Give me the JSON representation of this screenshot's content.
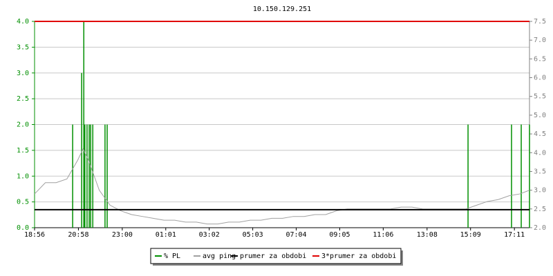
{
  "chart_data": {
    "type": "line",
    "title": "10.150.129.251",
    "xlim": [
      0,
      1377
    ],
    "xticks": [
      {
        "value": 0,
        "label": "18:56"
      },
      {
        "value": 122,
        "label": "20:58"
      },
      {
        "value": 244,
        "label": "23:00"
      },
      {
        "value": 365,
        "label": "01:01"
      },
      {
        "value": 486,
        "label": "03:02"
      },
      {
        "value": 607,
        "label": "05:03"
      },
      {
        "value": 728,
        "label": "07:04"
      },
      {
        "value": 849,
        "label": "09:05"
      },
      {
        "value": 970,
        "label": "11:06"
      },
      {
        "value": 1092,
        "label": "13:08"
      },
      {
        "value": 1213,
        "label": "15:09"
      },
      {
        "value": 1335,
        "label": "17:11"
      }
    ],
    "ylim": [
      0,
      4
    ],
    "yticks": [
      {
        "value": 0,
        "label": "0.0"
      },
      0.5,
      {
        "value": 1,
        "label": "1.0"
      },
      1.5,
      {
        "value": 2,
        "label": "2.0"
      },
      2.5,
      {
        "value": 3,
        "label": "3.0"
      },
      3.5,
      {
        "value": 4,
        "label": "4.0"
      }
    ],
    "y2lim": [
      2,
      7.5
    ],
    "y2ticks": [
      {
        "value": 2,
        "label": "2.0"
      },
      2.5,
      {
        "value": 3,
        "label": "3.0"
      },
      3.5,
      {
        "value": 4,
        "label": "4.0"
      },
      4.5,
      {
        "value": 5,
        "label": "5.0"
      },
      5.5,
      {
        "value": 6,
        "label": "6.0"
      },
      6.5,
      {
        "value": 7,
        "label": "7.0"
      },
      7.5
    ],
    "grid": true,
    "series": [
      {
        "name": "% PL",
        "color": "#008f00",
        "kind": "bar",
        "x": [
          106,
          131,
          137,
          140,
          146,
          152,
          156,
          162,
          196,
          202,
          1206,
          1327,
          1354,
          1377
        ],
        "values": [
          2,
          3,
          4,
          2,
          2,
          2,
          2,
          2,
          2,
          2,
          2,
          2,
          2,
          2
        ]
      },
      {
        "name": "avg ping",
        "color": "#a0a0a0",
        "kind": "line",
        "axis": "y2",
        "x": [
          0,
          30,
          60,
          90,
          120,
          135,
          150,
          165,
          180,
          210,
          240,
          270,
          300,
          330,
          360,
          390,
          420,
          450,
          480,
          510,
          540,
          570,
          600,
          630,
          660,
          690,
          720,
          750,
          780,
          810,
          840,
          870,
          900,
          930,
          960,
          990,
          1020,
          1050,
          1080,
          1110,
          1140,
          1170,
          1200,
          1230,
          1260,
          1290,
          1320,
          1350,
          1377
        ],
        "values": [
          2.9,
          3.2,
          3.2,
          3.3,
          3.8,
          4.1,
          3.8,
          3.4,
          3.0,
          2.6,
          2.45,
          2.35,
          2.3,
          2.25,
          2.2,
          2.2,
          2.15,
          2.15,
          2.1,
          2.1,
          2.15,
          2.15,
          2.2,
          2.2,
          2.25,
          2.25,
          2.3,
          2.3,
          2.35,
          2.35,
          2.45,
          2.5,
          2.5,
          2.5,
          2.5,
          2.5,
          2.55,
          2.55,
          2.5,
          2.5,
          2.5,
          2.5,
          2.5,
          2.6,
          2.7,
          2.75,
          2.85,
          2.9,
          3.0
        ]
      },
      {
        "name": "prumer za obdobi",
        "color": "#000000",
        "kind": "hline",
        "value": 0.35
      },
      {
        "name": "3*prumer za obdobi",
        "color": "#e00000",
        "kind": "hline",
        "value": 4
      }
    ]
  }
}
